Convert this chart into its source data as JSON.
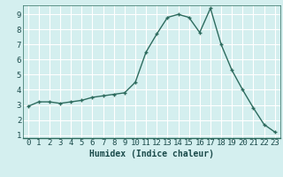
{
  "x": [
    0,
    1,
    2,
    3,
    4,
    5,
    6,
    7,
    8,
    9,
    10,
    11,
    12,
    13,
    14,
    15,
    16,
    17,
    18,
    19,
    20,
    21,
    22,
    23
  ],
  "y": [
    2.9,
    3.2,
    3.2,
    3.1,
    3.2,
    3.3,
    3.5,
    3.6,
    3.7,
    3.8,
    4.5,
    6.5,
    7.7,
    8.8,
    9.0,
    8.8,
    7.8,
    9.4,
    7.0,
    5.3,
    4.0,
    2.8,
    1.7,
    1.2
  ],
  "line_color": "#2d6b5e",
  "bg_color": "#d4efef",
  "grid_color": "#ffffff",
  "grid_minor_color": "#e8f7f7",
  "xlabel": "Humidex (Indice chaleur)",
  "ylim": [
    0.8,
    9.6
  ],
  "xlim": [
    -0.5,
    23.5
  ],
  "yticks": [
    1,
    2,
    3,
    4,
    5,
    6,
    7,
    8,
    9
  ],
  "xticks": [
    0,
    1,
    2,
    3,
    4,
    5,
    6,
    7,
    8,
    9,
    10,
    11,
    12,
    13,
    14,
    15,
    16,
    17,
    18,
    19,
    20,
    21,
    22,
    23
  ],
  "xlabel_fontsize": 7.0,
  "tick_fontsize": 6.5
}
